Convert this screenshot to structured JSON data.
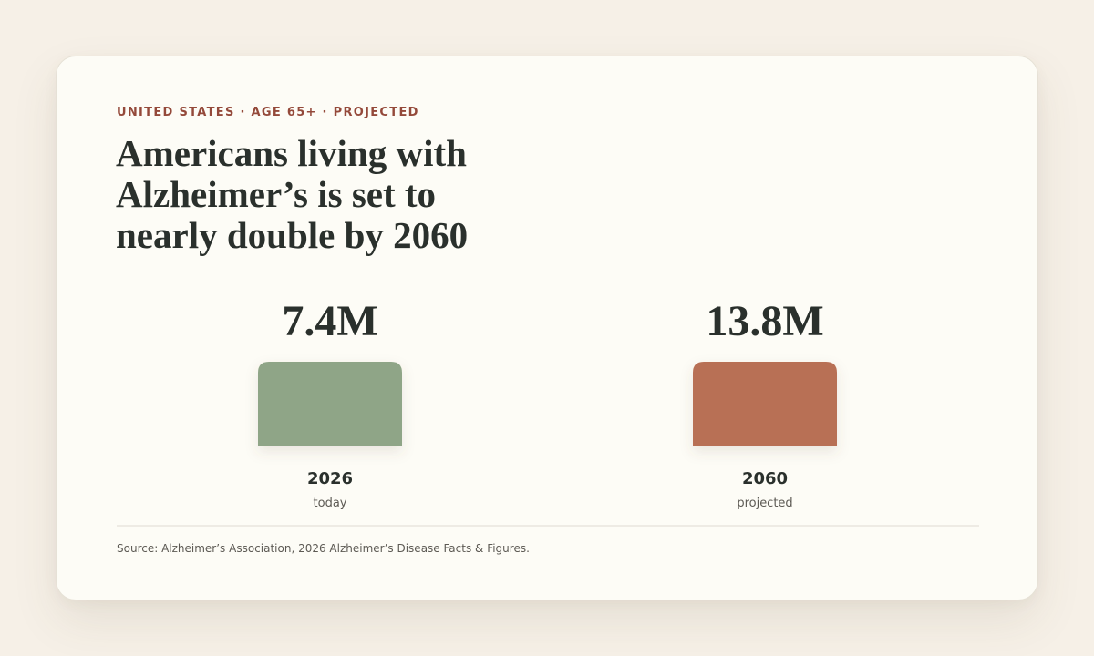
{
  "header": {
    "eyebrow": "UNITED STATES · AGE 65+ · PROJECTED",
    "title": "Americans living with Alzheimer’s is set to nearly double by 2060"
  },
  "chart_data": {
    "type": "bar",
    "categories": [
      "2026",
      "2060"
    ],
    "sublabels": [
      "today",
      "projected"
    ],
    "values": [
      7.4,
      13.8
    ],
    "value_labels": [
      "7.4M",
      "13.8M"
    ],
    "colors": [
      "#8fa587",
      "#b86f55"
    ],
    "title": "Americans living with Alzheimer’s is set to nearly double by 2060",
    "xlabel": "",
    "ylabel": "",
    "grid": false,
    "legend": "none"
  },
  "footer": {
    "source": "Source: Alzheimer’s Association, 2026 Alzheimer’s Disease Facts & Figures."
  },
  "colors": {
    "page_background": "#f6f0e7",
    "card_background": "#fdfcf6",
    "eyebrow": "#94493a",
    "text_dark": "#2a302c",
    "text_muted": "#5d5a54",
    "rule": "#dedad1"
  }
}
